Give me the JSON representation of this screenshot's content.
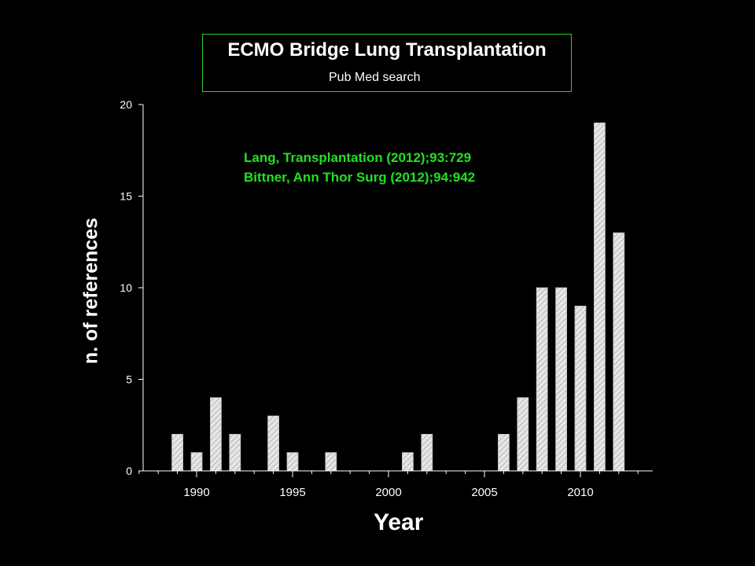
{
  "chart_data": {
    "type": "bar",
    "title": "ECMO Bridge Lung Transplantation",
    "subtitle": "Pub Med search",
    "xlabel": "Year",
    "ylabel": "n. of references",
    "annotations": [
      "Lang, Transplantation (2012);93:729",
      "Bittner, Ann Thor Surg (2012);94:942"
    ],
    "x": [
      1989,
      1990,
      1991,
      1992,
      1994,
      1995,
      1997,
      2001,
      2002,
      2006,
      2007,
      2008,
      2009,
      2010,
      2011,
      2012
    ],
    "values": [
      2,
      1,
      4,
      2,
      3,
      1,
      1,
      1,
      2,
      2,
      4,
      10,
      10,
      9,
      19,
      13
    ],
    "xticks": [
      "1990",
      "1995",
      "2000",
      "2005",
      "2010"
    ],
    "yticks": [
      "0",
      "5",
      "10",
      "15",
      "20"
    ],
    "xlim": [
      1986.5,
      2013.5
    ],
    "ylim": [
      0,
      20
    ],
    "grid": false,
    "colors": {
      "background": "#000000",
      "bar_fill": "#e6e6e6",
      "bar_hatch": "#9a9a9a",
      "axis": "#ffffff",
      "annotation": "#22e022",
      "title_border": "#2bd12b"
    }
  }
}
